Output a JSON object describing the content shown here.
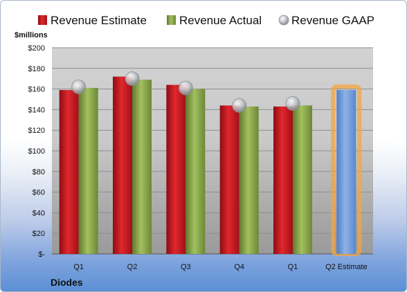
{
  "chart_data": {
    "type": "bar",
    "company": "Diodes",
    "unit_label": "$millions",
    "categories": [
      "Q1",
      "Q2",
      "Q3",
      "Q4",
      "Q1",
      "Q2 Estimate"
    ],
    "ylim": [
      0,
      200
    ],
    "yticks": [
      "$-",
      "$20",
      "$40",
      "$60",
      "$80",
      "$100",
      "$120",
      "$140",
      "$160",
      "$180",
      "$200"
    ],
    "legend_position": "top",
    "series": [
      {
        "name": "Revenue Estimate",
        "type": "bar",
        "color": "#c8161d",
        "values": [
          159,
          172,
          164,
          144,
          143,
          null
        ]
      },
      {
        "name": "Revenue Actual",
        "type": "bar",
        "color": "#8aaa4a",
        "values": [
          161,
          169,
          160,
          143,
          144,
          null
        ]
      },
      {
        "name": "Revenue GAAP",
        "type": "marker",
        "color": "#b8bcc2",
        "values": [
          162,
          170,
          161,
          144,
          146,
          null
        ]
      },
      {
        "name": "Q2 Estimate",
        "type": "bar",
        "color": "#6f9bd6",
        "highlight": "#f4a442",
        "values": [
          null,
          null,
          null,
          null,
          null,
          159
        ],
        "in_legend": false
      }
    ]
  }
}
